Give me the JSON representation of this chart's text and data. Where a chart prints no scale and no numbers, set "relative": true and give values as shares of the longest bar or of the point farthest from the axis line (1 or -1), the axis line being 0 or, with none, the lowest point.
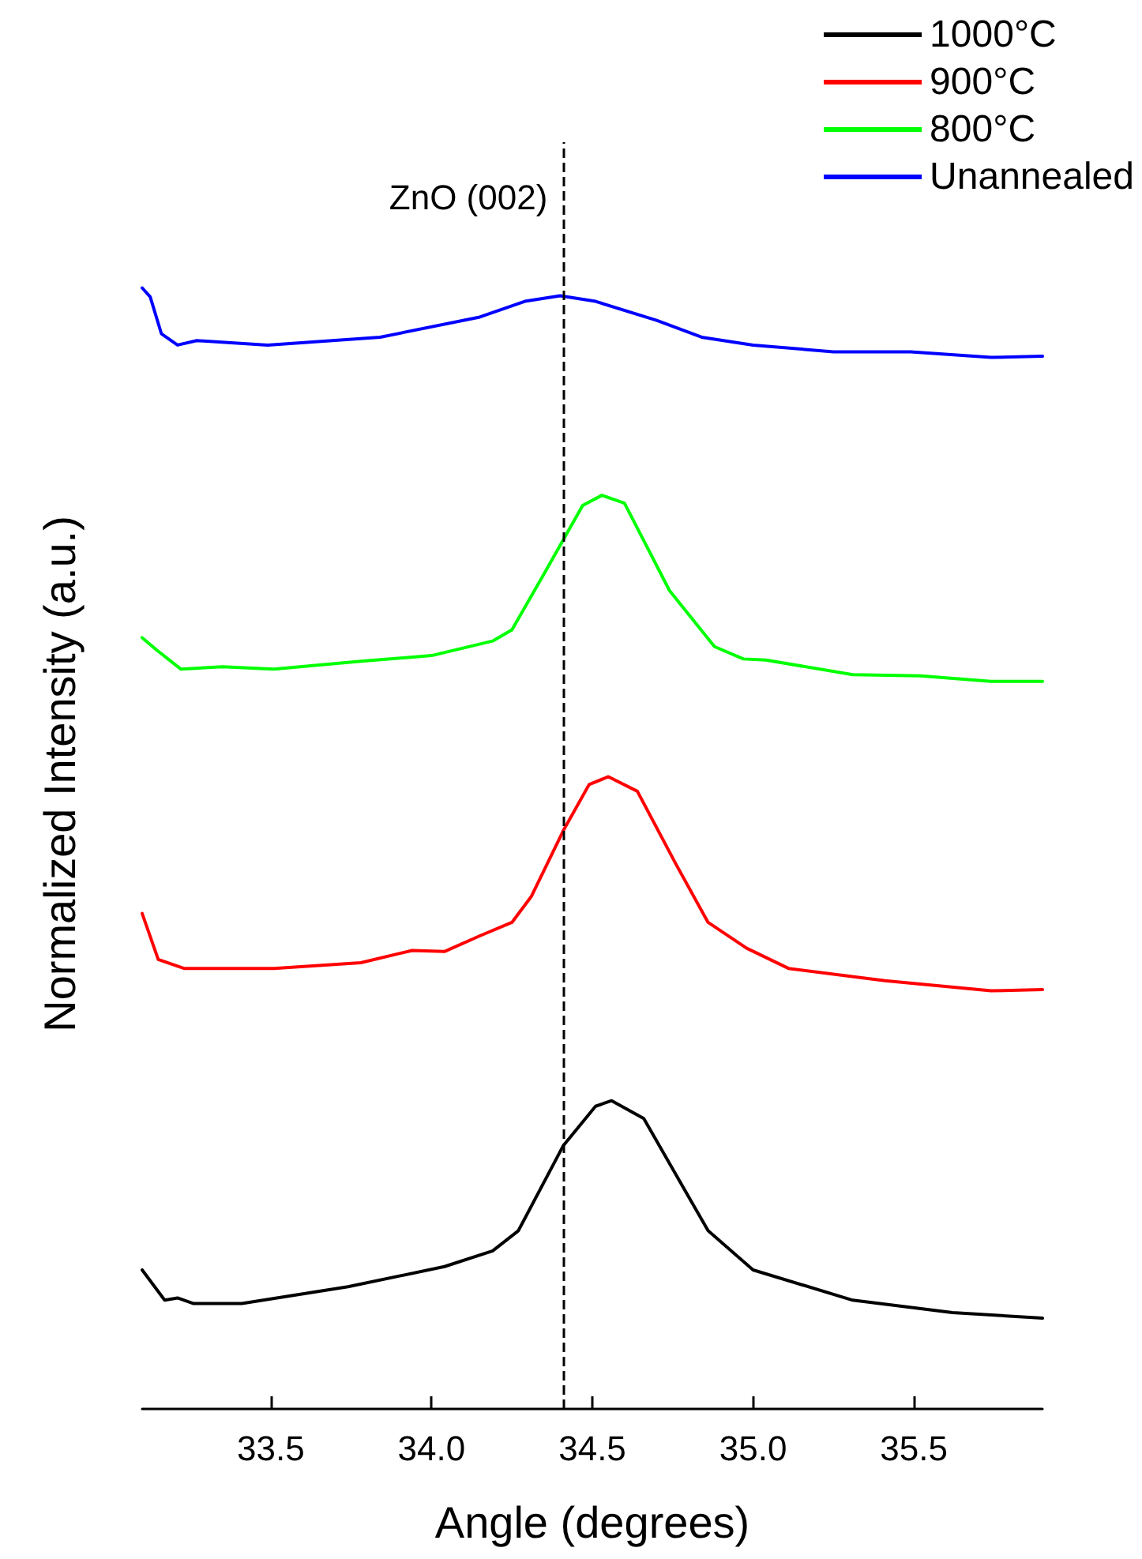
{
  "chart_data": {
    "type": "line",
    "relative": true,
    "xlabel": "Angle (degrees)",
    "ylabel": "Normalized Intensity (a.u.)",
    "xlim": [
      33.1,
      35.9
    ],
    "xticks": [
      33.5,
      {
        "value": 34,
        "label": "34.0"
      },
      34.5,
      {
        "value": 35,
        "label": "35.0"
      },
      35.5
    ],
    "legend": "top right",
    "marker": "none",
    "line_style": "solid",
    "grid": false,
    "ref_lines": [
      {
        "axis": "x",
        "value": 34.41,
        "label": "ZnO (002)",
        "color": "#000000",
        "line_style": "dashed"
      }
    ],
    "series": [
      {
        "name": "1000°C",
        "color": "#000000",
        "x": [
          33.1,
          33.17,
          33.21,
          33.26,
          33.41,
          33.74,
          34.04,
          34.19,
          34.27,
          34.41,
          34.51,
          34.56,
          34.66,
          34.86,
          35.0,
          35.31,
          35.62,
          35.9
        ],
        "values": [
          0.124,
          0.097,
          0.099,
          0.094,
          0.094,
          0.109,
          0.127,
          0.141,
          0.159,
          0.235,
          0.27,
          0.275,
          0.259,
          0.159,
          0.124,
          0.097,
          0.086,
          0.081
        ]
      },
      {
        "name": "900°C",
        "color": "#ff0000",
        "x": [
          33.1,
          33.15,
          33.23,
          33.51,
          33.78,
          33.94,
          34.04,
          34.15,
          34.25,
          34.31,
          34.41,
          34.49,
          34.55,
          34.64,
          34.76,
          34.86,
          34.98,
          35.11,
          35.41,
          35.74,
          35.9
        ],
        "values": [
          0.442,
          0.401,
          0.393,
          0.393,
          0.398,
          0.409,
          0.408,
          0.422,
          0.434,
          0.457,
          0.516,
          0.557,
          0.564,
          0.551,
          0.486,
          0.434,
          0.411,
          0.393,
          0.382,
          0.373,
          0.374
        ]
      },
      {
        "name": "800°C",
        "color": "#00ff00",
        "x": [
          33.1,
          33.145,
          33.22,
          33.35,
          33.51,
          33.78,
          34.0,
          34.19,
          34.25,
          34.35,
          34.47,
          34.53,
          34.6,
          34.74,
          34.88,
          34.97,
          35.04,
          35.31,
          35.52,
          35.74,
          35.9
        ],
        "values": [
          0.688,
          0.677,
          0.66,
          0.662,
          0.66,
          0.667,
          0.672,
          0.685,
          0.695,
          0.745,
          0.806,
          0.815,
          0.808,
          0.73,
          0.68,
          0.669,
          0.668,
          0.655,
          0.654,
          0.649,
          0.649
        ]
      },
      {
        "name": "Unannealed",
        "color": "#0000ff",
        "x": [
          33.1,
          33.125,
          33.16,
          33.21,
          33.27,
          33.49,
          33.84,
          34.15,
          34.29,
          34.4,
          34.51,
          34.7,
          34.84,
          35.0,
          35.25,
          35.49,
          35.74,
          35.9
        ],
        "values": [
          1.0,
          0.992,
          0.959,
          0.949,
          0.953,
          0.949,
          0.956,
          0.974,
          0.988,
          0.993,
          0.988,
          0.971,
          0.956,
          0.949,
          0.943,
          0.943,
          0.938,
          0.939
        ]
      }
    ]
  }
}
